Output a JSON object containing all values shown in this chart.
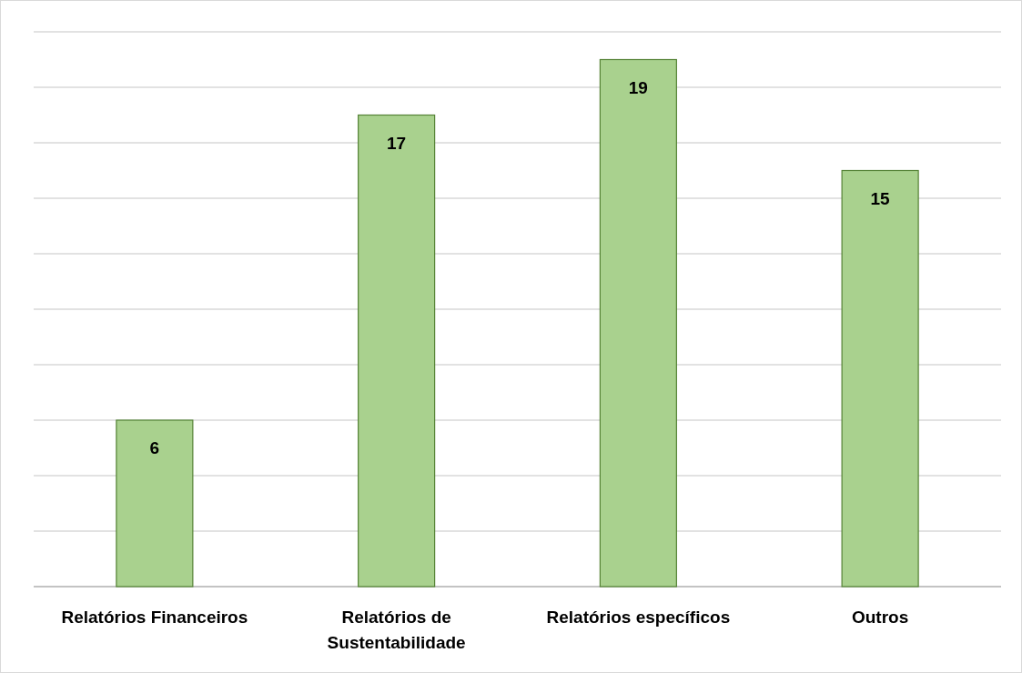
{
  "chart_data": {
    "type": "bar",
    "categories": [
      "Relatórios Financeiros",
      "Relatórios de Sustentabilidade",
      "Relatórios específicos",
      "Outros"
    ],
    "values": [
      6,
      17,
      19,
      15
    ],
    "color": "#a9d18e",
    "data_labels": true,
    "ylim": [
      0,
      20
    ],
    "yticks": [
      {
        "value": 0,
        "label": null
      },
      {
        "value": 2,
        "label": null
      },
      {
        "value": 4,
        "label": null
      },
      {
        "value": 6,
        "label": null
      },
      {
        "value": 8,
        "label": null
      },
      {
        "value": 10,
        "label": null
      },
      {
        "value": 12,
        "label": null
      },
      {
        "value": 14,
        "label": null
      },
      {
        "value": 16,
        "label": null
      },
      {
        "value": 18,
        "label": null
      },
      {
        "value": 20,
        "label": null
      }
    ],
    "grid": "y",
    "tick_labels": "x"
  }
}
